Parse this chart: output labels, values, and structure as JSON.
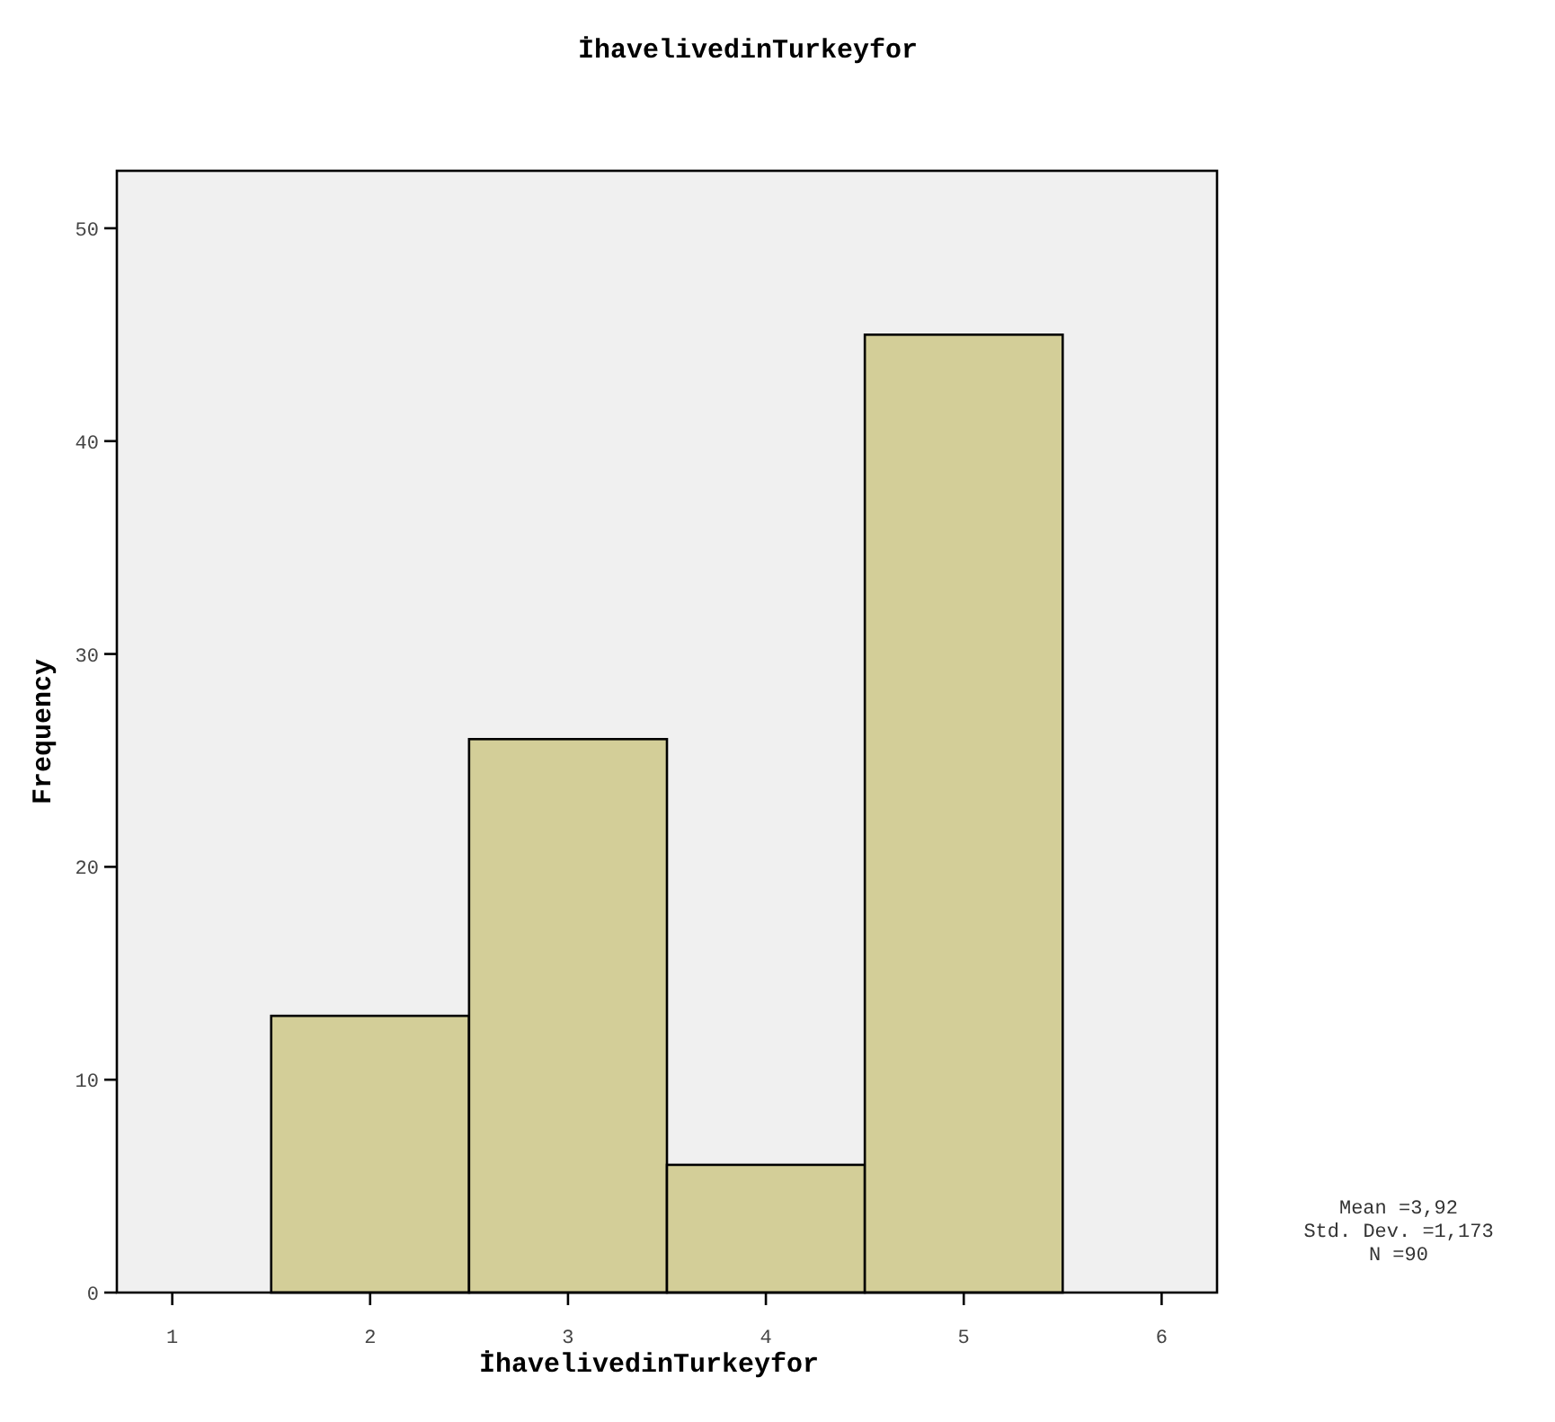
{
  "chart_data": {
    "type": "histogram",
    "title": "İhavelivedinTurkeyfor",
    "xlabel": "İhavelivedinTurkeyfor",
    "ylabel": "Frequency",
    "bins": [
      1.5,
      2.5,
      3.5,
      4.5,
      5.5
    ],
    "values": [
      13,
      26,
      6,
      45
    ],
    "color": "#d3ce98",
    "xlim": [
      0.72,
      6.28
    ],
    "xticks": [
      1,
      2,
      3,
      4,
      5,
      6
    ],
    "ylim": [
      0,
      52.7
    ],
    "yticks": [
      0,
      10,
      20,
      30,
      40,
      50
    ],
    "grid": false,
    "annotations": [
      "Mean =3,92",
      "Std. Dev. =1,173",
      "N =90"
    ]
  }
}
